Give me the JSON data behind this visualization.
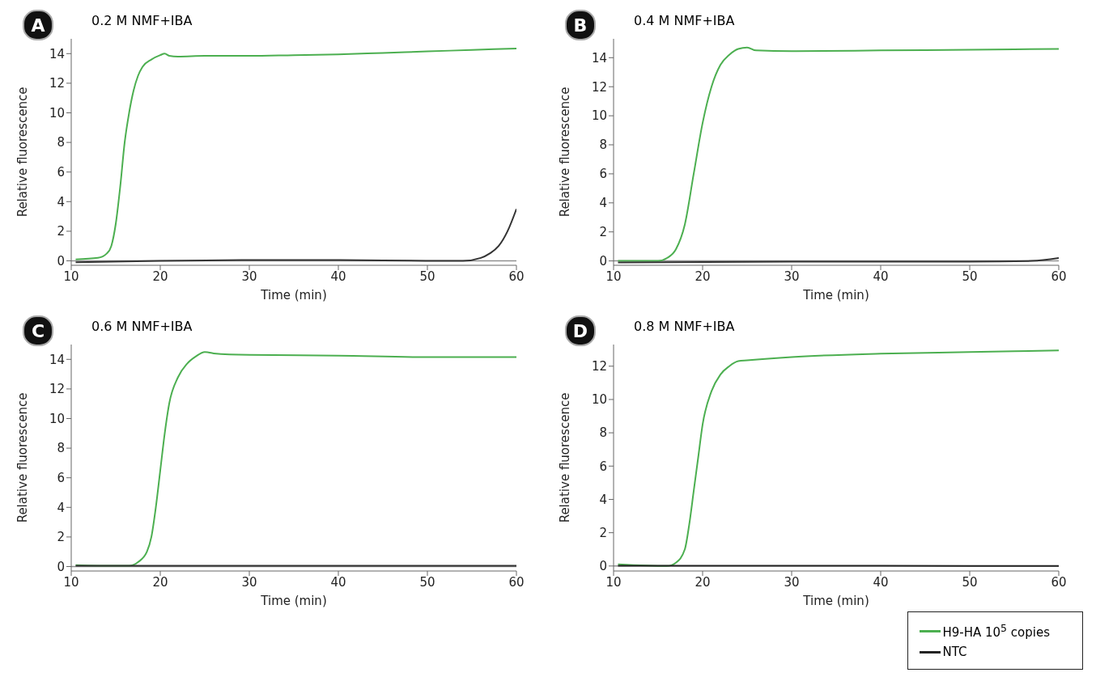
{
  "chart_data": [
    {
      "type": "line",
      "title": "0.2 M NMF+IBA",
      "xlabel": "Time (min)",
      "ylabel": "Relative fluorescence",
      "annotations": [
        "A"
      ],
      "xlim": [
        10,
        60
      ],
      "ylim": [
        -0.3,
        15
      ],
      "xticks": [
        10,
        20,
        30,
        40,
        50,
        60
      ],
      "yticks": [
        0,
        2,
        4,
        6,
        8,
        10,
        12,
        14
      ],
      "marker": "none",
      "ref_lines": [
        {
          "axis": "y",
          "value": 0,
          "color": "#909090"
        }
      ],
      "series": [
        {
          "color": "#4caf50",
          "x": [
            10.5,
            13,
            14,
            14.5,
            15,
            15.5,
            16,
            16.5,
            17,
            17.5,
            18,
            19,
            20,
            20.5,
            21,
            22,
            25,
            30,
            35,
            40,
            45,
            50,
            55,
            60
          ],
          "values": [
            0.1,
            0.2,
            0.5,
            1,
            2.5,
            5,
            8,
            10,
            11.5,
            12.5,
            13.1,
            13.6,
            13.9,
            14,
            13.85,
            13.8,
            13.85,
            13.85,
            13.9,
            13.95,
            14.05,
            14.15,
            14.25,
            14.35
          ]
        },
        {
          "color": "#333333",
          "x": [
            10.5,
            20,
            30,
            40,
            50,
            54,
            56,
            57,
            58,
            59,
            60
          ],
          "values": [
            -0.1,
            0,
            0.05,
            0.05,
            0,
            0,
            0.2,
            0.5,
            1,
            2,
            3.5
          ]
        }
      ]
    },
    {
      "type": "line",
      "title": "0.4 M NMF+IBA",
      "xlabel": "Time (min)",
      "ylabel": "Relative fluorescence",
      "annotations": [
        "B"
      ],
      "xlim": [
        10,
        60
      ],
      "ylim": [
        -0.3,
        15.3
      ],
      "xticks": [
        10,
        20,
        30,
        40,
        50,
        60
      ],
      "yticks": [
        0,
        2,
        4,
        6,
        8,
        10,
        12,
        14
      ],
      "marker": "none",
      "ref_lines": [
        {
          "axis": "y",
          "value": 0,
          "color": "#909090"
        }
      ],
      "series": [
        {
          "color": "#4caf50",
          "x": [
            10.5,
            15,
            16,
            17,
            18,
            19,
            20,
            21,
            22,
            23,
            24,
            25,
            26,
            30,
            40,
            50,
            60
          ],
          "values": [
            0,
            0,
            0.2,
            0.8,
            2.5,
            6,
            9.5,
            12,
            13.5,
            14.2,
            14.6,
            14.7,
            14.5,
            14.45,
            14.5,
            14.55,
            14.6
          ]
        },
        {
          "color": "#333333",
          "x": [
            10.5,
            30,
            50,
            57,
            60
          ],
          "values": [
            -0.1,
            -0.05,
            -0.05,
            0,
            0.2
          ]
        }
      ]
    },
    {
      "type": "line",
      "title": "0.6 M NMF+IBA",
      "xlabel": "Time (min)",
      "ylabel": "Relative fluorescence",
      "annotations": [
        "C"
      ],
      "xlim": [
        10,
        60
      ],
      "ylim": [
        -0.3,
        15
      ],
      "xticks": [
        10,
        20,
        30,
        40,
        50,
        60
      ],
      "yticks": [
        0,
        2,
        4,
        6,
        8,
        10,
        12,
        14
      ],
      "marker": "none",
      "ref_lines": [
        {
          "axis": "y",
          "value": 0,
          "color": "#909090"
        }
      ],
      "series": [
        {
          "color": "#4caf50",
          "x": [
            10.5,
            15,
            16.5,
            17.5,
            18.5,
            19,
            19.5,
            20,
            20.5,
            21,
            22,
            23,
            24,
            25,
            26,
            30,
            40,
            50,
            60
          ],
          "values": [
            0.1,
            0.05,
            0.05,
            0.3,
            1,
            2,
            4,
            6.5,
            9,
            11,
            12.8,
            13.7,
            14.2,
            14.5,
            14.4,
            14.3,
            14.25,
            14.15,
            14.15
          ]
        },
        {
          "color": "#333333",
          "x": [
            10.5,
            30,
            50,
            60
          ],
          "values": [
            0.05,
            0.05,
            0.05,
            0.05
          ]
        }
      ]
    },
    {
      "type": "line",
      "title": "0.8 M NMF+IBA",
      "xlabel": "Time (min)",
      "ylabel": "Relative fluorescence",
      "annotations": [
        "D"
      ],
      "xlim": [
        10,
        60
      ],
      "ylim": [
        -0.3,
        13.3
      ],
      "xticks": [
        10,
        20,
        30,
        40,
        50,
        60
      ],
      "yticks": [
        0,
        2,
        4,
        6,
        8,
        10,
        12
      ],
      "marker": "none",
      "legend": "bottom right",
      "ref_lines": [
        {
          "axis": "y",
          "value": 0,
          "color": "#909090"
        }
      ],
      "series": [
        {
          "name": "H9-HA 10$^{5}$ copies",
          "color": "#4caf50",
          "x": [
            10.5,
            16,
            17,
            18,
            18.5,
            19,
            19.5,
            20,
            21,
            22,
            23,
            24,
            25,
            30,
            40,
            50,
            60
          ],
          "values": [
            0.1,
            0,
            0.2,
            1,
            2.5,
            4.5,
            6.5,
            8.5,
            10.5,
            11.5,
            12,
            12.3,
            12.35,
            12.55,
            12.75,
            12.85,
            12.95
          ]
        },
        {
          "name": "NTC",
          "color": "#222222",
          "x": [
            10.5,
            30,
            50,
            60
          ],
          "values": [
            0.02,
            0.02,
            0,
            0
          ]
        }
      ]
    }
  ]
}
